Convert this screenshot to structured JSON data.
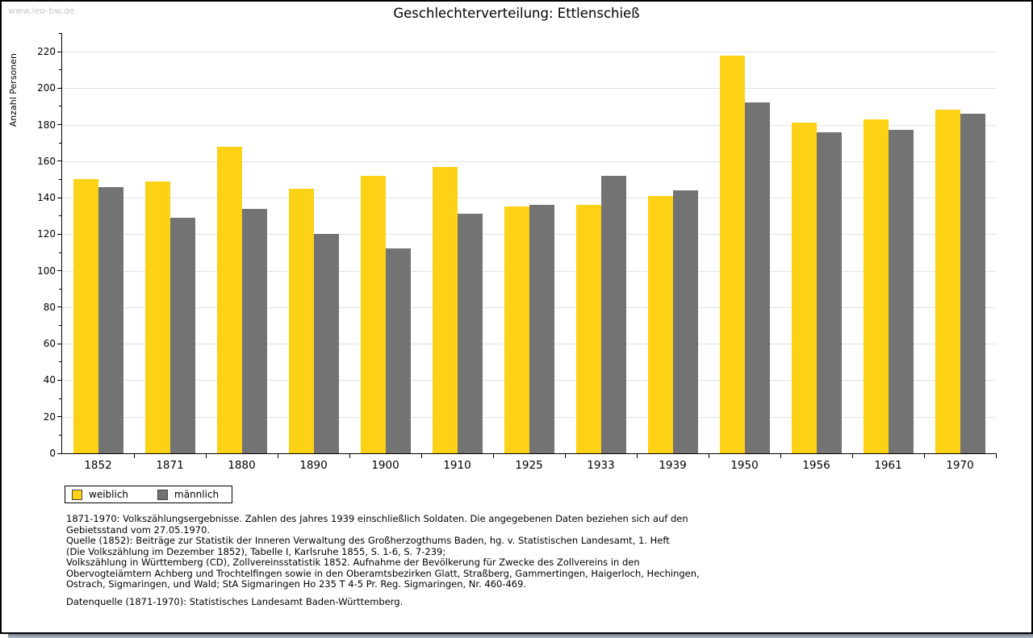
{
  "watermark": "www.leo-bw.de",
  "chart_data": {
    "type": "bar",
    "title": "Geschlechterverteilung: Ettlenschieß",
    "xlabel": "",
    "ylabel": "Anzahl Personen",
    "categories": [
      "1852",
      "1871",
      "1880",
      "1890",
      "1900",
      "1910",
      "1925",
      "1933",
      "1939",
      "1950",
      "1956",
      "1961",
      "1970"
    ],
    "series": [
      {
        "name": "weiblich",
        "color": "#FCD116",
        "values": [
          150,
          149,
          168,
          145,
          152,
          157,
          135,
          136,
          141,
          218,
          181,
          183,
          188
        ]
      },
      {
        "name": "männlich",
        "color": "#737373",
        "values": [
          146,
          129,
          134,
          120,
          112,
          131,
          136,
          152,
          144,
          192,
          176,
          177,
          186
        ]
      }
    ],
    "ylim": [
      0,
      220
    ],
    "ytick_step": 20,
    "grid": true,
    "legend_position": "bottom-left"
  },
  "footnotes": [
    "1871-1970: Volkszählungsergebnisse. Zahlen des Jahres 1939 einschließlich Soldaten. Die angegebenen Daten beziehen sich auf den",
    "Gebietsstand vom 27.05.1970.",
    "Quelle (1852): Beiträge zur Statistik der Inneren Verwaltung des Großherzogthums Baden, hg. v. Statistischen Landesamt, 1. Heft",
    "(Die Volkszählung im Dezember 1852), Tabelle I, Karlsruhe 1855, S. 1-6, S. 7-239;",
    "Volkszählung in Württemberg (CD), Zollvereinsstatistik 1852. Aufnahme der Bevölkerung für Zwecke des Zollvereins in den",
    "Obervogteiämtern Achberg und Trochtelfingen sowie in den Oberamtsbezirken Glatt, Straßberg, Gammertingen, Haigerloch, Hechingen,",
    "Ostrach, Sigmaringen, und Wald; StA Sigmaringen Ho 235 T 4-5 Pr. Reg. Sigmaringen, Nr. 460-469."
  ],
  "datasource": "Datenquelle (1871-1970): Statistisches Landesamt Baden-Württemberg."
}
